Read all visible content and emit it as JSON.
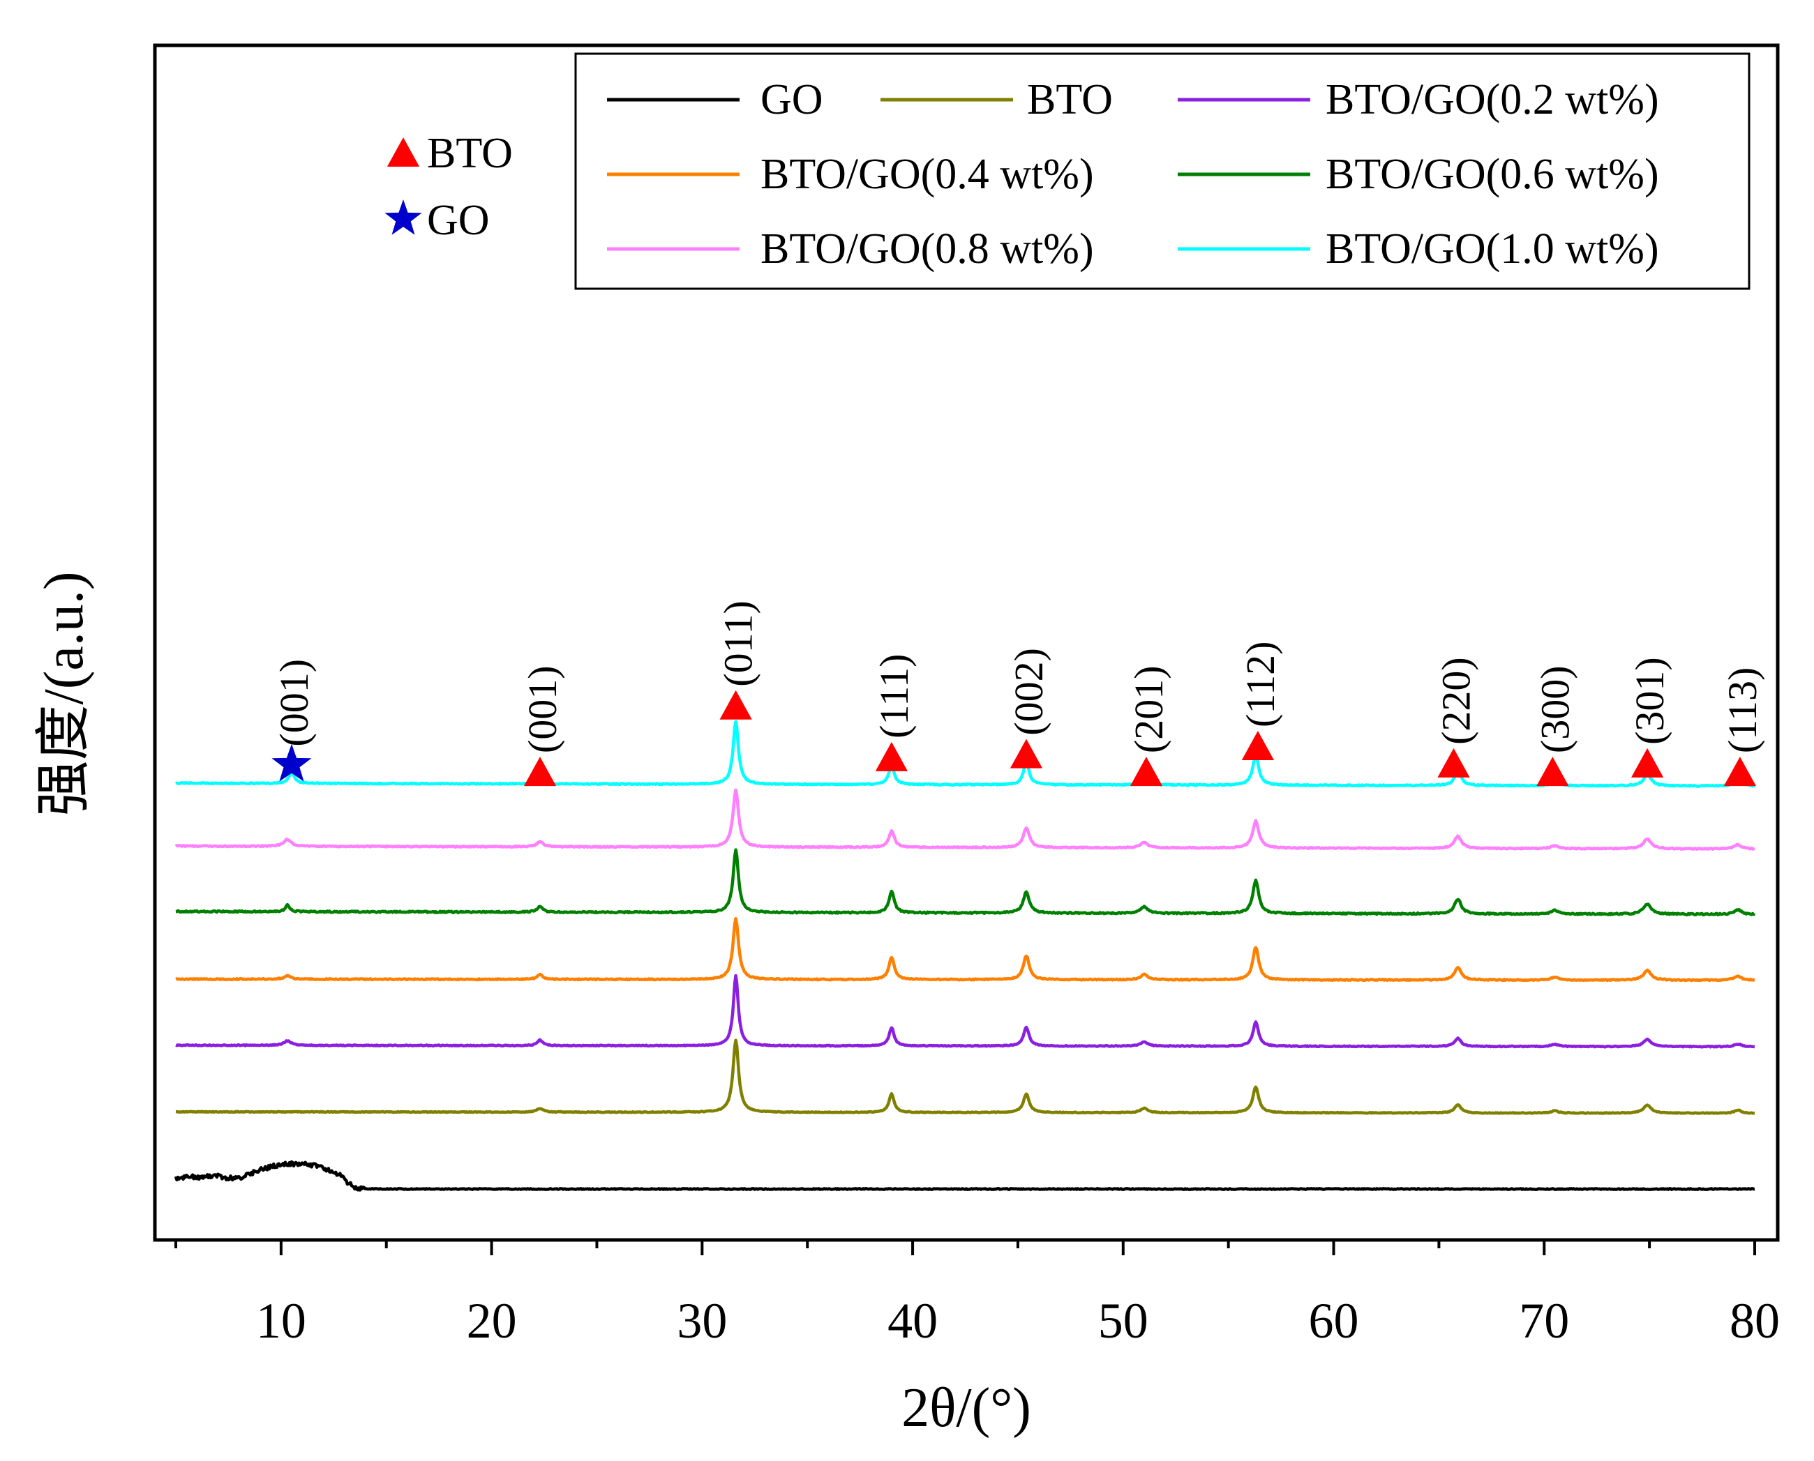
{
  "chart_data": {
    "type": "line",
    "xlabel": "2θ/(°)",
    "ylabel": "强度/(a.u.)",
    "xlim": [
      4,
      81
    ],
    "x_ticks": [
      10,
      20,
      30,
      40,
      50,
      60,
      70,
      80
    ],
    "x_tick_labels": [
      "10",
      "20",
      "30",
      "40",
      "50",
      "60",
      "70",
      "80"
    ],
    "x_minor_step": 5,
    "y_ticks_visible": false,
    "legend_position": "top-right",
    "legend_columns": 3,
    "colors": {
      "GO": "#000000",
      "BTO": "#808000",
      "BTO/GO(0.2 wt%)": "#8A1FE0",
      "BTO/GO(0.4 wt%)": "#FF8000",
      "BTO/GO(0.6 wt%)": "#008000",
      "BTO/GO(0.8 wt%)": "#FF80FF",
      "BTO/GO(1.0 wt%)": "#00FFFF",
      "bto_marker": "#FF0000",
      "go_marker": "#0000CC"
    },
    "series": [
      {
        "name": "GO",
        "color": "#000000",
        "baseline": 0,
        "slope": 0,
        "noise": 0.12,
        "peaks": [],
        "hump": {
          "points": [
            [
              5.0,
              3.0
            ],
            [
              5.6,
              3.4
            ],
            [
              6.2,
              3.1
            ],
            [
              6.8,
              3.8
            ],
            [
              7.4,
              2.9
            ],
            [
              8.0,
              3.0
            ],
            [
              8.6,
              4.2
            ],
            [
              9.2,
              5.6
            ],
            [
              9.8,
              6.4
            ],
            [
              10.4,
              6.8
            ],
            [
              11.0,
              6.9
            ],
            [
              11.6,
              6.4
            ],
            [
              12.2,
              5.3
            ],
            [
              12.8,
              3.8
            ],
            [
              13.2,
              1.5
            ],
            [
              13.6,
              0.3
            ],
            [
              14.2,
              0.0
            ],
            [
              80.0,
              0.0
            ]
          ]
        }
      },
      {
        "name": "BTO",
        "color": "#808000",
        "baseline": 20.5,
        "slope": 0.4,
        "noise": 0.1,
        "peaks": [
          {
            "x": 22.3,
            "h": 1.0,
            "w": 0.18
          },
          {
            "x": 31.6,
            "h": 19.5,
            "w": 0.16
          },
          {
            "x": 39.0,
            "h": 5.0,
            "w": 0.15
          },
          {
            "x": 45.4,
            "h": 5.0,
            "w": 0.17
          },
          {
            "x": 51.0,
            "h": 1.2,
            "w": 0.2
          },
          {
            "x": 56.3,
            "h": 7.0,
            "w": 0.17
          },
          {
            "x": 65.9,
            "h": 2.3,
            "w": 0.18
          },
          {
            "x": 70.5,
            "h": 0.6,
            "w": 0.2
          },
          {
            "x": 74.9,
            "h": 2.2,
            "w": 0.22
          },
          {
            "x": 79.2,
            "h": 0.8,
            "w": 0.2
          }
        ]
      },
      {
        "name": "BTO/GO(0.2 wt%)",
        "color": "#8A1FE0",
        "baseline": 38.5,
        "slope": 0.4,
        "noise": 0.12,
        "peaks": [
          {
            "x": 10.3,
            "h": 1.2,
            "w": 0.2
          },
          {
            "x": 22.3,
            "h": 1.5,
            "w": 0.15
          },
          {
            "x": 31.6,
            "h": 19.0,
            "w": 0.14
          },
          {
            "x": 39.0,
            "h": 5.0,
            "w": 0.14
          },
          {
            "x": 45.4,
            "h": 5.0,
            "w": 0.16
          },
          {
            "x": 51.0,
            "h": 1.2,
            "w": 0.2
          },
          {
            "x": 56.3,
            "h": 6.5,
            "w": 0.16
          },
          {
            "x": 65.9,
            "h": 2.2,
            "w": 0.18
          },
          {
            "x": 70.5,
            "h": 0.6,
            "w": 0.2
          },
          {
            "x": 74.9,
            "h": 2.0,
            "w": 0.22
          },
          {
            "x": 79.2,
            "h": 0.7,
            "w": 0.2
          }
        ]
      },
      {
        "name": "BTO/GO(0.4 wt%)",
        "color": "#FF8000",
        "baseline": 56.5,
        "slope": 0.3,
        "noise": 0.14,
        "peaks": [
          {
            "x": 10.3,
            "h": 1.0,
            "w": 0.18
          },
          {
            "x": 22.3,
            "h": 1.3,
            "w": 0.16
          },
          {
            "x": 31.6,
            "h": 16.5,
            "w": 0.16
          },
          {
            "x": 39.0,
            "h": 6.0,
            "w": 0.16
          },
          {
            "x": 45.4,
            "h": 6.5,
            "w": 0.17
          },
          {
            "x": 51.0,
            "h": 1.4,
            "w": 0.2
          },
          {
            "x": 56.3,
            "h": 8.8,
            "w": 0.17
          },
          {
            "x": 65.9,
            "h": 3.4,
            "w": 0.19
          },
          {
            "x": 70.5,
            "h": 0.8,
            "w": 0.2
          },
          {
            "x": 74.9,
            "h": 2.6,
            "w": 0.22
          },
          {
            "x": 79.2,
            "h": 1.1,
            "w": 0.2
          }
        ]
      },
      {
        "name": "BTO/GO(0.6 wt%)",
        "color": "#008000",
        "baseline": 74.3,
        "slope": 0.8,
        "noise": 0.18,
        "peaks": [
          {
            "x": 10.3,
            "h": 1.8,
            "w": 0.12
          },
          {
            "x": 22.3,
            "h": 1.5,
            "w": 0.16
          },
          {
            "x": 31.6,
            "h": 17.0,
            "w": 0.15
          },
          {
            "x": 39.0,
            "h": 5.8,
            "w": 0.15
          },
          {
            "x": 45.4,
            "h": 5.8,
            "w": 0.17
          },
          {
            "x": 51.0,
            "h": 1.8,
            "w": 0.2
          },
          {
            "x": 56.3,
            "h": 9.0,
            "w": 0.17
          },
          {
            "x": 65.9,
            "h": 4.0,
            "w": 0.19
          },
          {
            "x": 70.5,
            "h": 1.0,
            "w": 0.2
          },
          {
            "x": 74.9,
            "h": 2.8,
            "w": 0.22
          },
          {
            "x": 79.2,
            "h": 1.3,
            "w": 0.2
          }
        ]
      },
      {
        "name": "BTO/GO(0.8 wt%)",
        "color": "#FF80FF",
        "baseline": 92.0,
        "slope": 0.8,
        "noise": 0.14,
        "peaks": [
          {
            "x": 10.3,
            "h": 1.9,
            "w": 0.2
          },
          {
            "x": 22.3,
            "h": 1.4,
            "w": 0.17
          },
          {
            "x": 31.6,
            "h": 15.5,
            "w": 0.16
          },
          {
            "x": 39.0,
            "h": 4.4,
            "w": 0.16
          },
          {
            "x": 45.4,
            "h": 5.3,
            "w": 0.18
          },
          {
            "x": 51.0,
            "h": 1.5,
            "w": 0.2
          },
          {
            "x": 56.3,
            "h": 7.3,
            "w": 0.18
          },
          {
            "x": 65.9,
            "h": 3.3,
            "w": 0.2
          },
          {
            "x": 70.5,
            "h": 0.8,
            "w": 0.2
          },
          {
            "x": 74.9,
            "h": 2.7,
            "w": 0.22
          },
          {
            "x": 79.2,
            "h": 1.2,
            "w": 0.2
          }
        ]
      },
      {
        "name": "BTO/GO(1.0 wt%)",
        "color": "#00FFFF",
        "baseline": 109.0,
        "slope": 0.8,
        "noise": 0.14,
        "peaks": [
          {
            "x": 10.5,
            "h": 3.0,
            "w": 0.16
          },
          {
            "x": 22.3,
            "h": 1.6,
            "w": 0.16
          },
          {
            "x": 31.6,
            "h": 17.0,
            "w": 0.15
          },
          {
            "x": 39.0,
            "h": 5.5,
            "w": 0.15
          },
          {
            "x": 45.4,
            "h": 6.3,
            "w": 0.16
          },
          {
            "x": 51.0,
            "h": 1.8,
            "w": 0.2
          },
          {
            "x": 56.3,
            "h": 8.2,
            "w": 0.17
          },
          {
            "x": 65.9,
            "h": 3.9,
            "w": 0.19
          },
          {
            "x": 70.5,
            "h": 1.3,
            "w": 0.2
          },
          {
            "x": 74.9,
            "h": 3.0,
            "w": 0.22
          },
          {
            "x": 79.2,
            "h": 1.5,
            "w": 0.2
          }
        ]
      }
    ],
    "annotations": [
      {
        "x": 10.5,
        "label": "(001)",
        "marker": "star",
        "level": 114.8
      },
      {
        "x": 22.3,
        "label": "(001)",
        "marker": "triangle",
        "level": 113.0
      },
      {
        "x": 31.6,
        "label": "(011)",
        "marker": "triangle",
        "level": 131.0
      },
      {
        "x": 39.0,
        "label": "(111)",
        "marker": "triangle",
        "level": 117.0
      },
      {
        "x": 45.4,
        "label": "(002)",
        "marker": "triangle",
        "level": 117.8
      },
      {
        "x": 51.1,
        "label": "(201)",
        "marker": "triangle",
        "level": 113.0
      },
      {
        "x": 56.4,
        "label": "(112)",
        "marker": "triangle",
        "level": 120.0
      },
      {
        "x": 65.7,
        "label": "(220)",
        "marker": "triangle",
        "level": 115.3
      },
      {
        "x": 70.4,
        "label": "(300)",
        "marker": "triangle",
        "level": 113.0
      },
      {
        "x": 74.9,
        "label": "(301)",
        "marker": "triangle",
        "level": 115.3
      },
      {
        "x": 79.3,
        "label": "(113)",
        "marker": "triangle",
        "level": 113.0
      }
    ],
    "marker_key": [
      {
        "marker": "triangle",
        "label": "BTO",
        "color": "#FF0000"
      },
      {
        "marker": "star",
        "label": "GO",
        "color": "#0000CC"
      }
    ]
  }
}
